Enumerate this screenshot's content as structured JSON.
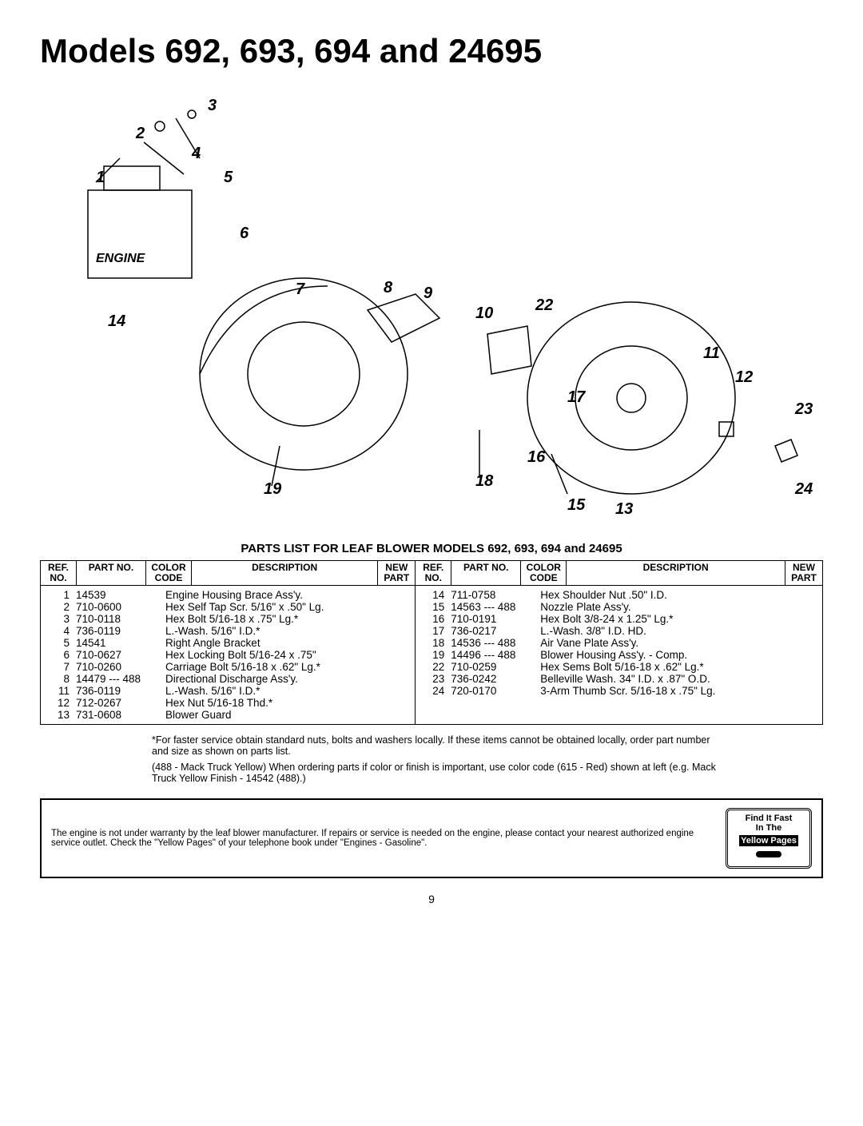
{
  "title": "Models 692, 693, 694 and 24695",
  "engine_label": "ENGINE",
  "parts_list_title": "PARTS LIST FOR LEAF BLOWER MODELS 692, 693, 694 and 24695",
  "columns": {
    "ref": "REF.\nNO.",
    "part": "PART\nNO.",
    "color": "COLOR\nCODE",
    "desc": "DESCRIPTION",
    "newpart": "NEW\nPART"
  },
  "rows_left": [
    {
      "ref": "1",
      "part": "14539",
      "desc": "Engine Housing Brace Ass'y."
    },
    {
      "ref": "2",
      "part": "710-0600",
      "desc": "Hex Self Tap Scr. 5/16\" x .50\" Lg."
    },
    {
      "ref": "3",
      "part": "710-0118",
      "desc": "Hex Bolt 5/16-18 x .75\" Lg.*"
    },
    {
      "ref": "4",
      "part": "736-0119",
      "desc": "L.-Wash. 5/16\" I.D.*"
    },
    {
      "ref": "5",
      "part": "14541",
      "desc": "Right Angle Bracket"
    },
    {
      "ref": "6",
      "part": "710-0627",
      "desc": "Hex Locking Bolt 5/16-24 x .75\""
    },
    {
      "ref": "7",
      "part": "710-0260",
      "desc": "Carriage Bolt 5/16-18 x .62\" Lg.*"
    },
    {
      "ref": "8",
      "part": "14479 --- 488",
      "desc": "Directional Discharge Ass'y."
    },
    {
      "ref": "11",
      "part": "736-0119",
      "desc": "L.-Wash. 5/16\" I.D.*"
    },
    {
      "ref": "12",
      "part": "712-0267",
      "desc": "Hex Nut 5/16-18 Thd.*"
    },
    {
      "ref": "13",
      "part": "731-0608",
      "desc": "Blower Guard"
    }
  ],
  "rows_right": [
    {
      "ref": "14",
      "part": "711-0758",
      "desc": "Hex Shoulder Nut .50\" I.D."
    },
    {
      "ref": "15",
      "part": "14563 --- 488",
      "desc": "Nozzle Plate Ass'y."
    },
    {
      "ref": "16",
      "part": "710-0191",
      "desc": "Hex Bolt 3/8-24 x 1.25\" Lg.*"
    },
    {
      "ref": "17",
      "part": "736-0217",
      "desc": "L.-Wash. 3/8\" I.D. HD."
    },
    {
      "ref": "18",
      "part": "14536 --- 488",
      "desc": "Air Vane Plate Ass'y."
    },
    {
      "ref": "19",
      "part": "14496 --- 488",
      "desc": "Blower Housing Ass'y. - Comp."
    },
    {
      "ref": "22",
      "part": "710-0259",
      "desc": "Hex Sems Bolt 5/16-18 x .62\" Lg.*"
    },
    {
      "ref": "23",
      "part": "736-0242",
      "desc": "Belleville Wash. 34\" I.D. x .87\" O.D."
    },
    {
      "ref": "24",
      "part": "720-0170",
      "desc": "3-Arm Thumb Scr. 5/16-18 x .75\" Lg."
    }
  ],
  "callouts": [
    "1",
    "2",
    "3",
    "4",
    "5",
    "6",
    "7",
    "8",
    "9",
    "10",
    "11",
    "12",
    "13",
    "14",
    "15",
    "16",
    "17",
    "18",
    "19",
    "22",
    "23",
    "24"
  ],
  "footnote": "*For faster service obtain standard nuts, bolts and washers locally. If these items cannot be obtained locally, order part number and size as shown on parts list.",
  "color_note": "(488 - Mack Truck Yellow) When ordering parts if color or finish is important, use color code (615 - Red) shown at left (e.g. Mack Truck Yellow Finish - 14542 (488).)",
  "warranty": "The engine is not under warranty by the leaf blower manufacturer. If repairs or service is needed on the engine, please contact your nearest authorized engine service outlet. Check the \"Yellow Pages\" of your telephone book under \"Engines - Gasoline\".",
  "yp": {
    "l1": "Find It Fast",
    "l2": "In The",
    "l3": "Yellow Pages"
  },
  "page_number": "9",
  "style": {
    "title_fontsize": 42,
    "body_fontsize": 13.5,
    "table_border_color": "#000000",
    "background": "#ffffff"
  }
}
